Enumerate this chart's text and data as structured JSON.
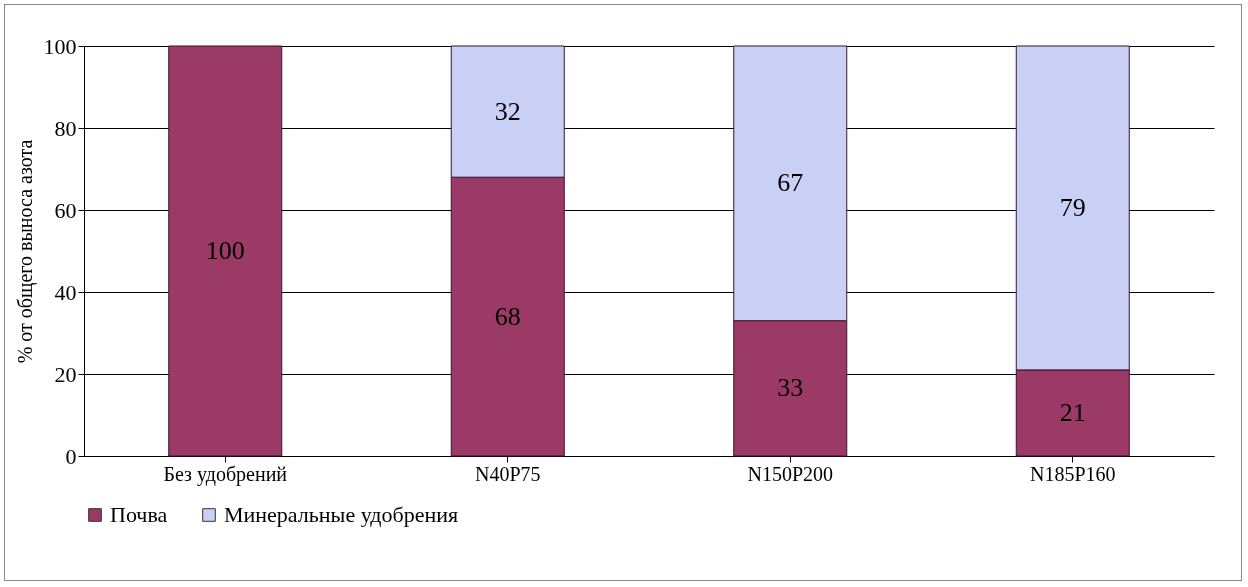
{
  "chart_data": {
    "type": "bar",
    "stacked": true,
    "ylabel": "% от общего выноса азота",
    "categories": [
      "Без удобрений",
      "N40P75",
      "N150P200",
      "N185P160"
    ],
    "series": [
      {
        "name": "Почва",
        "color": "#9b3a66",
        "values": [
          100,
          68,
          33,
          21
        ]
      },
      {
        "name": "Минеральные удобрения",
        "color": "#c9cff5",
        "values": [
          null,
          32,
          67,
          79
        ]
      }
    ],
    "ylim": [
      0,
      100
    ],
    "yticks": [
      0,
      20,
      40,
      60,
      80,
      100
    ],
    "grid": "y",
    "legend": "bottom",
    "data_labels": true
  }
}
